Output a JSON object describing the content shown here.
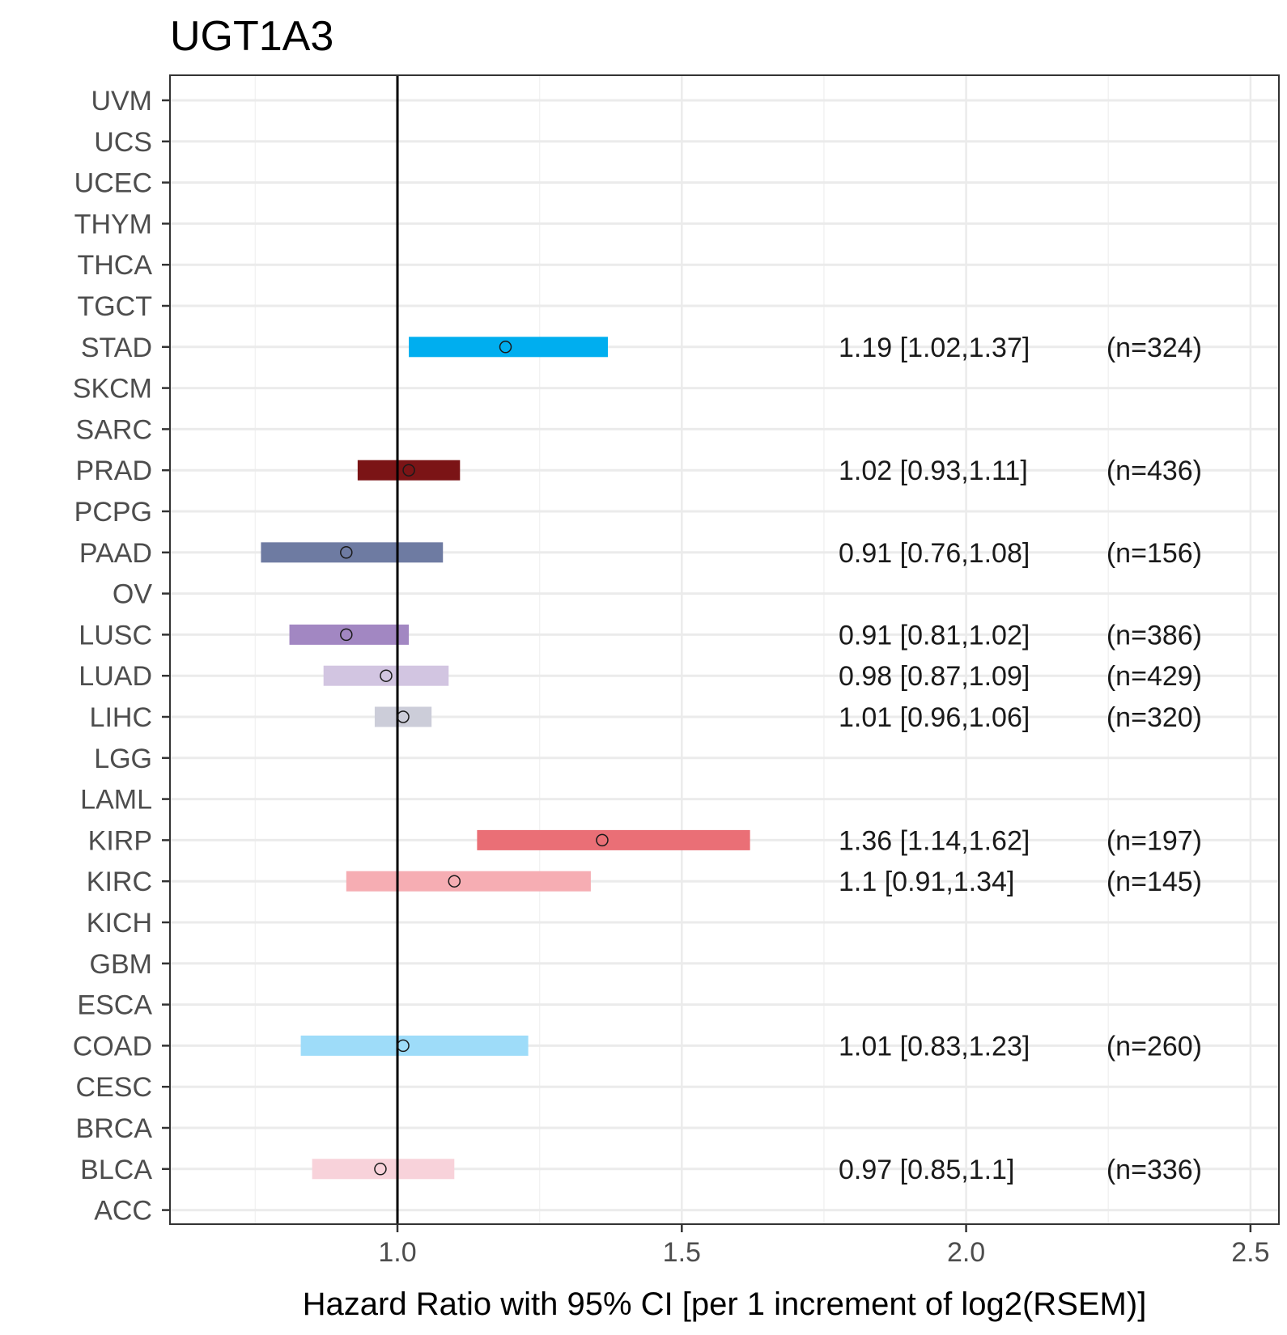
{
  "chart_data": {
    "type": "forest",
    "title": "UGT1A3",
    "xlabel": "Hazard Ratio with 95% CI [per 1 increment of log2(RSEM)]",
    "ylabel": "",
    "xlim": [
      0.6,
      2.55
    ],
    "x_ticks": [
      {
        "value": 1.0,
        "label": "1.0"
      },
      {
        "value": 1.5,
        "label": "1.5"
      },
      {
        "value": 2.0,
        "label": "2.0"
      },
      {
        "value": 2.5,
        "label": "2.5"
      }
    ],
    "minor_ticks": [
      0.75,
      1.25,
      1.75,
      2.25
    ],
    "reference_line": 1.0,
    "grid": true,
    "categories": [
      "UVM",
      "UCS",
      "UCEC",
      "THYM",
      "THCA",
      "TGCT",
      "STAD",
      "SKCM",
      "SARC",
      "PRAD",
      "PCPG",
      "PAAD",
      "OV",
      "LUSC",
      "LUAD",
      "LIHC",
      "LGG",
      "LAML",
      "KIRP",
      "KIRC",
      "KICH",
      "GBM",
      "ESCA",
      "COAD",
      "CESC",
      "BRCA",
      "BLCA",
      "ACC"
    ],
    "series": [
      {
        "category": "STAD",
        "hr": 1.19,
        "low": 1.02,
        "high": 1.37,
        "color": "#00AEEF",
        "label": "1.19 [1.02,1.37]",
        "n": "(n=324)"
      },
      {
        "category": "PRAD",
        "hr": 1.02,
        "low": 0.93,
        "high": 1.11,
        "color": "#7B1416",
        "label": "1.02 [0.93,1.11]",
        "n": "(n=436)"
      },
      {
        "category": "PAAD",
        "hr": 0.91,
        "low": 0.76,
        "high": 1.08,
        "color": "#6E7BA2",
        "label": "0.91 [0.76,1.08]",
        "n": "(n=156)"
      },
      {
        "category": "LUSC",
        "hr": 0.91,
        "low": 0.81,
        "high": 1.02,
        "color": "#A287C2",
        "label": "0.91 [0.81,1.02]",
        "n": "(n=386)"
      },
      {
        "category": "LUAD",
        "hr": 0.98,
        "low": 0.87,
        "high": 1.09,
        "color": "#D2C5E1",
        "label": "0.98 [0.87,1.09]",
        "n": "(n=429)"
      },
      {
        "category": "LIHC",
        "hr": 1.01,
        "low": 0.96,
        "high": 1.06,
        "color": "#CCCDD9",
        "label": "1.01 [0.96,1.06]",
        "n": "(n=320)"
      },
      {
        "category": "KIRP",
        "hr": 1.36,
        "low": 1.14,
        "high": 1.62,
        "color": "#EA6F76",
        "label": "1.36 [1.14,1.62]",
        "n": "(n=197)"
      },
      {
        "category": "KIRC",
        "hr": 1.1,
        "low": 0.91,
        "high": 1.34,
        "color": "#F6ADB3",
        "label": "1.1 [0.91,1.34]",
        "n": "(n=145)"
      },
      {
        "category": "COAD",
        "hr": 1.01,
        "low": 0.83,
        "high": 1.23,
        "color": "#9EDCF9",
        "label": "1.01 [0.83,1.23]",
        "n": "(n=260)"
      },
      {
        "category": "BLCA",
        "hr": 0.97,
        "low": 0.85,
        "high": 1.1,
        "color": "#F8D2DA",
        "label": "0.97 [0.85,1.1]",
        "n": "(n=336)"
      }
    ]
  }
}
